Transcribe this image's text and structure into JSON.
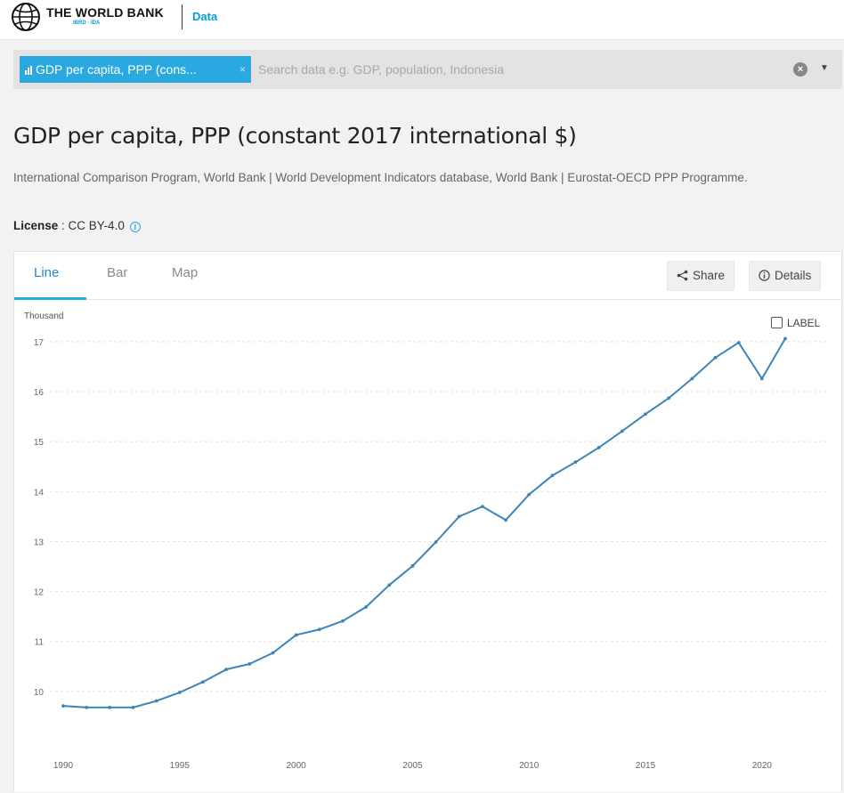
{
  "header": {
    "brand": "THE WORLD BANK",
    "brand_sub": "IBRD · IDA",
    "section": "Data"
  },
  "search": {
    "chip_label": "GDP per capita, PPP (cons...",
    "placeholder": "Search data e.g. GDP, population, Indonesia",
    "value": ""
  },
  "page": {
    "title": "GDP per capita, PPP (constant 2017 international $)",
    "source": "International Comparison Program, World Bank | World Development Indicators database, World Bank | Eurostat-OECD PPP Programme.",
    "license_label": "License",
    "license_sep": " : ",
    "license_value": "CC BY-4.0"
  },
  "tabs": [
    {
      "label": "Line",
      "active": true
    },
    {
      "label": "Bar",
      "active": false
    },
    {
      "label": "Map",
      "active": false
    }
  ],
  "actions": {
    "share": "Share",
    "details": "Details"
  },
  "label_toggle": "LABEL",
  "colors": {
    "accent": "#2aa9e0",
    "line": "#3d85b8",
    "grid": "#e3e3e3"
  },
  "chart_data": {
    "type": "line",
    "title": "",
    "ylabel": "Thousand",
    "xlabel": "",
    "xlim": [
      1990,
      2021
    ],
    "ylim": [
      9.25,
      17.3
    ],
    "x_ticks": [
      1990,
      1995,
      2000,
      2005,
      2010,
      2015,
      2020
    ],
    "y_ticks": [
      10,
      11,
      12,
      13,
      14,
      15,
      16,
      17
    ],
    "grid": true,
    "series": [
      {
        "x": [
          1990,
          1991,
          1992,
          1993,
          1994,
          1995,
          1996,
          1997,
          1998,
          1999,
          2000,
          2001,
          2002,
          2003,
          2004,
          2005,
          2006,
          2007,
          2008,
          2009,
          2010,
          2011,
          2012,
          2013,
          2014,
          2015,
          2016,
          2017,
          2018,
          2019,
          2020,
          2021
        ],
        "values": [
          9.71,
          9.68,
          9.68,
          9.68,
          9.81,
          9.98,
          10.19,
          10.44,
          10.55,
          10.77,
          11.13,
          11.24,
          11.41,
          11.69,
          12.13,
          12.51,
          12.99,
          13.5,
          13.7,
          13.43,
          13.94,
          14.32,
          14.59,
          14.88,
          15.21,
          15.55,
          15.87,
          16.26,
          16.68,
          16.98,
          16.26,
          17.06
        ]
      }
    ]
  }
}
